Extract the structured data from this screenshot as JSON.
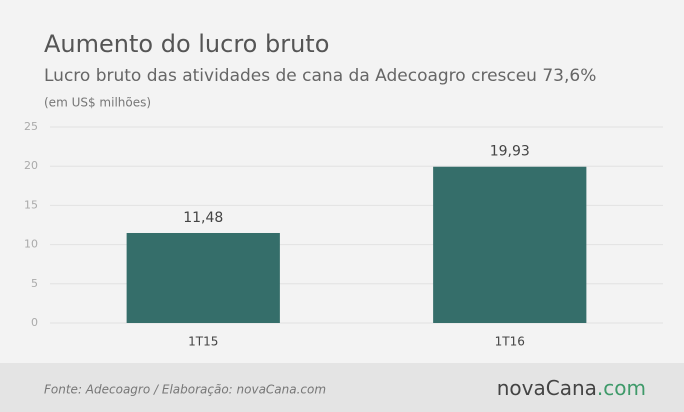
{
  "chart_data": {
    "type": "bar",
    "title": "Aumento do lucro bruto",
    "subtitle": "Lucro bruto das atividades de cana da Adecoagro cresceu 73,6%",
    "unit_note": "(em US$ milhões)",
    "categories": [
      "1T15",
      "1T16"
    ],
    "values": [
      11.48,
      19.93
    ],
    "value_labels": [
      "11,48",
      "19,93"
    ],
    "color": "#356e6a",
    "ylim": [
      0,
      25
    ],
    "yticks": [
      0,
      5,
      10,
      15,
      20,
      25
    ],
    "grid": true,
    "source": "Fonte: Adecoagro / Elaboração: novaCana.com",
    "logo": [
      "nova",
      "Cana",
      ".com"
    ]
  }
}
